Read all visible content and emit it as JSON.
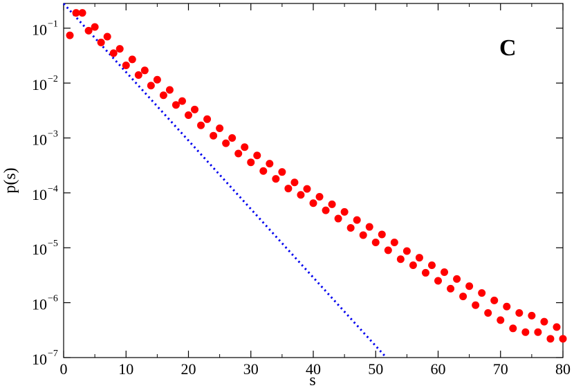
{
  "chart_data": {
    "type": "scatter",
    "title": "",
    "panel_label": "C",
    "xlabel": "s",
    "ylabel": "p(s)",
    "xlim": [
      0,
      80
    ],
    "ylim_log10": [
      -7,
      -0.55
    ],
    "yscale": "log",
    "x_ticks": [
      0,
      10,
      20,
      30,
      40,
      50,
      60,
      70,
      80
    ],
    "x_tick_labels": [
      "0",
      "10",
      "20",
      "30",
      "40",
      "50",
      "60",
      "70",
      "80"
    ],
    "y_ticks_exp": [
      -1,
      -2,
      -3,
      -4,
      -5,
      -6,
      -7
    ],
    "y_tick_base": "10",
    "colors": {
      "points": "#ff0000",
      "fit_line": "#0000ee",
      "axes": "#000000"
    },
    "series": [
      {
        "kind": "points",
        "x": [
          1,
          2,
          3,
          4,
          5,
          6,
          7,
          8,
          9,
          10,
          11,
          12,
          13,
          14,
          15,
          16,
          17,
          18,
          19,
          20,
          21,
          22,
          23,
          24,
          25,
          26,
          27,
          28,
          29,
          30,
          31,
          32,
          33,
          34,
          35,
          36,
          37,
          38,
          39,
          40,
          41,
          42,
          43,
          44,
          45,
          46,
          47,
          48,
          49,
          50,
          51,
          52,
          53,
          54,
          55,
          56,
          57,
          58,
          59,
          60,
          61,
          62,
          63,
          64,
          65,
          66,
          67,
          68,
          69,
          70,
          71,
          72,
          73,
          74,
          75,
          76,
          77,
          78,
          79,
          80
        ],
        "y": [
          0.074,
          0.19,
          0.19,
          0.09,
          0.105,
          0.055,
          0.07,
          0.035,
          0.042,
          0.021,
          0.027,
          0.014,
          0.017,
          0.009,
          0.0115,
          0.006,
          0.0075,
          0.004,
          0.0047,
          0.0026,
          0.0033,
          0.0017,
          0.0022,
          0.0011,
          0.0015,
          0.0008,
          0.001,
          0.00052,
          0.00068,
          0.00036,
          0.00048,
          0.00025,
          0.00034,
          0.00018,
          0.00024,
          0.00012,
          0.000155,
          9.2e-05,
          0.000118,
          6.5e-05,
          8.5e-05,
          4.8e-05,
          6.2e-05,
          3.4e-05,
          4.5e-05,
          2.3e-05,
          3.2e-05,
          1.7e-05,
          2.4e-05,
          1.25e-05,
          1.75e-05,
          9e-06,
          1.25e-05,
          6.2e-06,
          8.7e-06,
          4.8e-06,
          6.6e-06,
          3.5e-06,
          4.8e-06,
          2.5e-06,
          3.6e-06,
          1.8e-06,
          2.7e-06,
          1.3e-06,
          2e-06,
          9e-07,
          1.5e-06,
          6.5e-07,
          1.1e-06,
          4.8e-07,
          8.5e-07,
          3.4e-07,
          6.5e-07,
          2.9e-07,
          5.8e-07,
          2.9e-07,
          4.5e-07,
          2.2e-07,
          3.6e-07,
          2.2e-07
        ]
      },
      {
        "kind": "dotted-line",
        "x": [
          0,
          51.7
        ],
        "y": [
          0.28,
          1e-07
        ]
      }
    ]
  }
}
